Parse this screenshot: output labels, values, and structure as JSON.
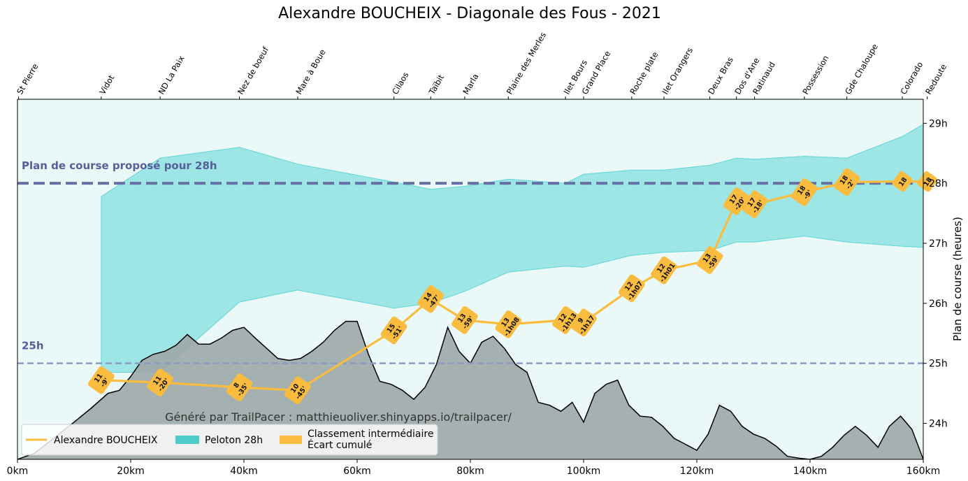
{
  "chart_data": {
    "type": "line",
    "title": "Alexandre BOUCHEIX - Diagonale des Fous - 2021",
    "ylabel": "Plan de course (heures)",
    "credit": "Généré par TrailPacer : matthieuoliver.shinyapps.io/trailpacer/",
    "xlim": [
      0,
      160
    ],
    "ylim": [
      23.4,
      29.4
    ],
    "x_ticks": [
      {
        "v": 0,
        "label": "0km"
      },
      {
        "v": 20,
        "label": "20km"
      },
      {
        "v": 40,
        "label": "40km"
      },
      {
        "v": 60,
        "label": "60km"
      },
      {
        "v": 80,
        "label": "80km"
      },
      {
        "v": 100,
        "label": "100km"
      },
      {
        "v": 120,
        "label": "120km"
      },
      {
        "v": 140,
        "label": "140km"
      },
      {
        "v": 160,
        "label": "160km"
      }
    ],
    "y_ticks": [
      {
        "v": 24,
        "label": "24h"
      },
      {
        "v": 25,
        "label": "25h"
      },
      {
        "v": 26,
        "label": "26h"
      },
      {
        "v": 27,
        "label": "27h"
      },
      {
        "v": 28,
        "label": "28h"
      },
      {
        "v": 29,
        "label": "29h"
      }
    ],
    "checkpoints": [
      {
        "name": "St Pierre",
        "km": 0.2
      },
      {
        "name": "Vidot",
        "km": 14.8
      },
      {
        "name": "ND La Paix",
        "km": 25.2
      },
      {
        "name": "Nez de boeuf",
        "km": 39.2
      },
      {
        "name": "Mare à Boue",
        "km": 49.5
      },
      {
        "name": "Cilaos",
        "km": 66.5
      },
      {
        "name": "Taïbit",
        "km": 73
      },
      {
        "name": "Marla",
        "km": 79
      },
      {
        "name": "Plaine des Merles",
        "km": 86.7
      },
      {
        "name": "Ilet Bours",
        "km": 96.8
      },
      {
        "name": "Grand Place",
        "km": 100
      },
      {
        "name": "Roche plate",
        "km": 108.5
      },
      {
        "name": "Ilet Orangers",
        "km": 114.2
      },
      {
        "name": "Deux Bras",
        "km": 122.3
      },
      {
        "name": "Dos d'Ane",
        "km": 127
      },
      {
        "name": "Ratinaud",
        "km": 130.2
      },
      {
        "name": "Possession",
        "km": 139
      },
      {
        "name": "Gde Chaloupe",
        "km": 146.5
      },
      {
        "name": "Colorado",
        "km": 156.3
      },
      {
        "name": "Redoute",
        "km": 160.7
      }
    ],
    "reference_lines": [
      {
        "label": "Plan de course proposé pour 28h",
        "y": 28,
        "color": "#6670a4",
        "style": "dashed"
      },
      {
        "label": "25h",
        "y": 25,
        "color": "#8a9cc4",
        "style": "dashed"
      }
    ],
    "series": [
      {
        "name": "Alexandre BOUCHEIX",
        "color": "#f9bc3e",
        "points": [
          {
            "km": 14.8,
            "y": 24.72,
            "rank": "11",
            "gap": "-9'"
          },
          {
            "km": 25.2,
            "y": 24.68,
            "rank": "11",
            "gap": "-20'"
          },
          {
            "km": 39.2,
            "y": 24.6,
            "rank": "8",
            "gap": "-35'"
          },
          {
            "km": 49.5,
            "y": 24.55,
            "rank": "10",
            "gap": "-45'"
          },
          {
            "km": 66.5,
            "y": 25.55,
            "rank": "15",
            "gap": "-51'"
          },
          {
            "km": 73,
            "y": 26.07,
            "rank": "14",
            "gap": "-47'"
          },
          {
            "km": 79,
            "y": 25.72,
            "rank": "13",
            "gap": "-59'"
          },
          {
            "km": 86.7,
            "y": 25.65,
            "rank": "13",
            "gap": "-1h08"
          },
          {
            "km": 96.8,
            "y": 25.72,
            "rank": "12",
            "gap": "-1h13"
          },
          {
            "km": 100,
            "y": 25.68,
            "rank": "9",
            "gap": "-1h17"
          },
          {
            "km": 108.5,
            "y": 26.25,
            "rank": "12",
            "gap": "-1h07"
          },
          {
            "km": 114.2,
            "y": 26.55,
            "rank": "12",
            "gap": "-1h01"
          },
          {
            "km": 122.3,
            "y": 26.72,
            "rank": "13",
            "gap": "-59'"
          },
          {
            "km": 127,
            "y": 27.7,
            "rank": "17",
            "gap": "-20'"
          },
          {
            "km": 130.2,
            "y": 27.65,
            "rank": "17",
            "gap": "-18'"
          },
          {
            "km": 139,
            "y": 27.85,
            "rank": "18",
            "gap": "-9'"
          },
          {
            "km": 146.5,
            "y": 28.02,
            "rank": "18",
            "gap": "-2'"
          },
          {
            "km": 156.3,
            "y": 28.03,
            "rank": "18",
            "gap": ""
          },
          {
            "km": 160.7,
            "y": 28.03,
            "rank": "18",
            "gap": ""
          }
        ]
      },
      {
        "name": "Peloton 28h",
        "color": "#5ed6d6",
        "band_km": [
          14.8,
          25.2,
          39.2,
          49.5,
          66.5,
          73,
          79,
          86.7,
          96.8,
          100,
          108.5,
          114.2,
          122.3,
          127,
          130.2,
          139,
          146.5,
          156.3,
          160.7
        ],
        "band_low": [
          24.85,
          24.85,
          26.02,
          26.22,
          25.92,
          26.0,
          26.2,
          26.52,
          26.62,
          26.6,
          26.8,
          26.85,
          26.88,
          27.02,
          27.02,
          27.12,
          27.02,
          26.95,
          26.93
        ],
        "band_high": [
          27.78,
          28.42,
          28.6,
          28.32,
          28.02,
          27.9,
          27.95,
          28.07,
          28.0,
          28.15,
          28.22,
          28.22,
          28.3,
          28.42,
          28.4,
          28.45,
          28.42,
          28.78,
          29.02
        ]
      }
    ],
    "legend": {
      "placement": "bottom-left",
      "items": [
        {
          "label": "Alexandre BOUCHEIX",
          "kind": "line",
          "color": "#f9bc3e"
        },
        {
          "label": "Peloton 28h",
          "kind": "patch",
          "color": "#4ecbcb"
        },
        {
          "label": "Classement intermédiaire",
          "label2": "Écart cumulé",
          "kind": "patch",
          "color": "#f9bc3e"
        }
      ]
    },
    "elevation_profile": {
      "fill": "#9ea9a9",
      "km": [
        0,
        3,
        6,
        10,
        13,
        16,
        18,
        20,
        22,
        24,
        26,
        28,
        30,
        32,
        34,
        36,
        38,
        40,
        42,
        44,
        46,
        48,
        50,
        52,
        54,
        56,
        58,
        60,
        62,
        64,
        66,
        68,
        70,
        72,
        74,
        76,
        78,
        80,
        82,
        84,
        86,
        88,
        90,
        92,
        94,
        96,
        98,
        100,
        102,
        104,
        106,
        108,
        110,
        112,
        114,
        116,
        118,
        120,
        122,
        124,
        126,
        128,
        130,
        132,
        134,
        136,
        138,
        140,
        142,
        144,
        146,
        148,
        150,
        152,
        154,
        156,
        158,
        160
      ],
      "y": [
        23.4,
        23.5,
        23.72,
        24.02,
        24.25,
        24.5,
        24.55,
        24.78,
        25.05,
        25.15,
        25.2,
        25.3,
        25.48,
        25.32,
        25.32,
        25.42,
        25.55,
        25.6,
        25.42,
        25.25,
        25.08,
        25.05,
        25.08,
        25.2,
        25.35,
        25.55,
        25.7,
        25.7,
        25.15,
        24.7,
        24.65,
        24.55,
        24.4,
        24.6,
        24.98,
        25.6,
        25.2,
        25.0,
        25.35,
        25.45,
        25.25,
        24.98,
        24.85,
        24.35,
        24.3,
        24.2,
        24.35,
        24.02,
        24.5,
        24.65,
        24.72,
        24.3,
        24.12,
        24.1,
        23.95,
        23.75,
        23.65,
        23.55,
        23.82,
        24.3,
        24.2,
        23.95,
        23.82,
        23.75,
        23.62,
        23.45,
        23.42,
        23.4,
        23.45,
        23.6,
        23.8,
        23.95,
        23.8,
        23.6,
        23.95,
        24.12,
        23.9,
        23.4
      ]
    }
  }
}
